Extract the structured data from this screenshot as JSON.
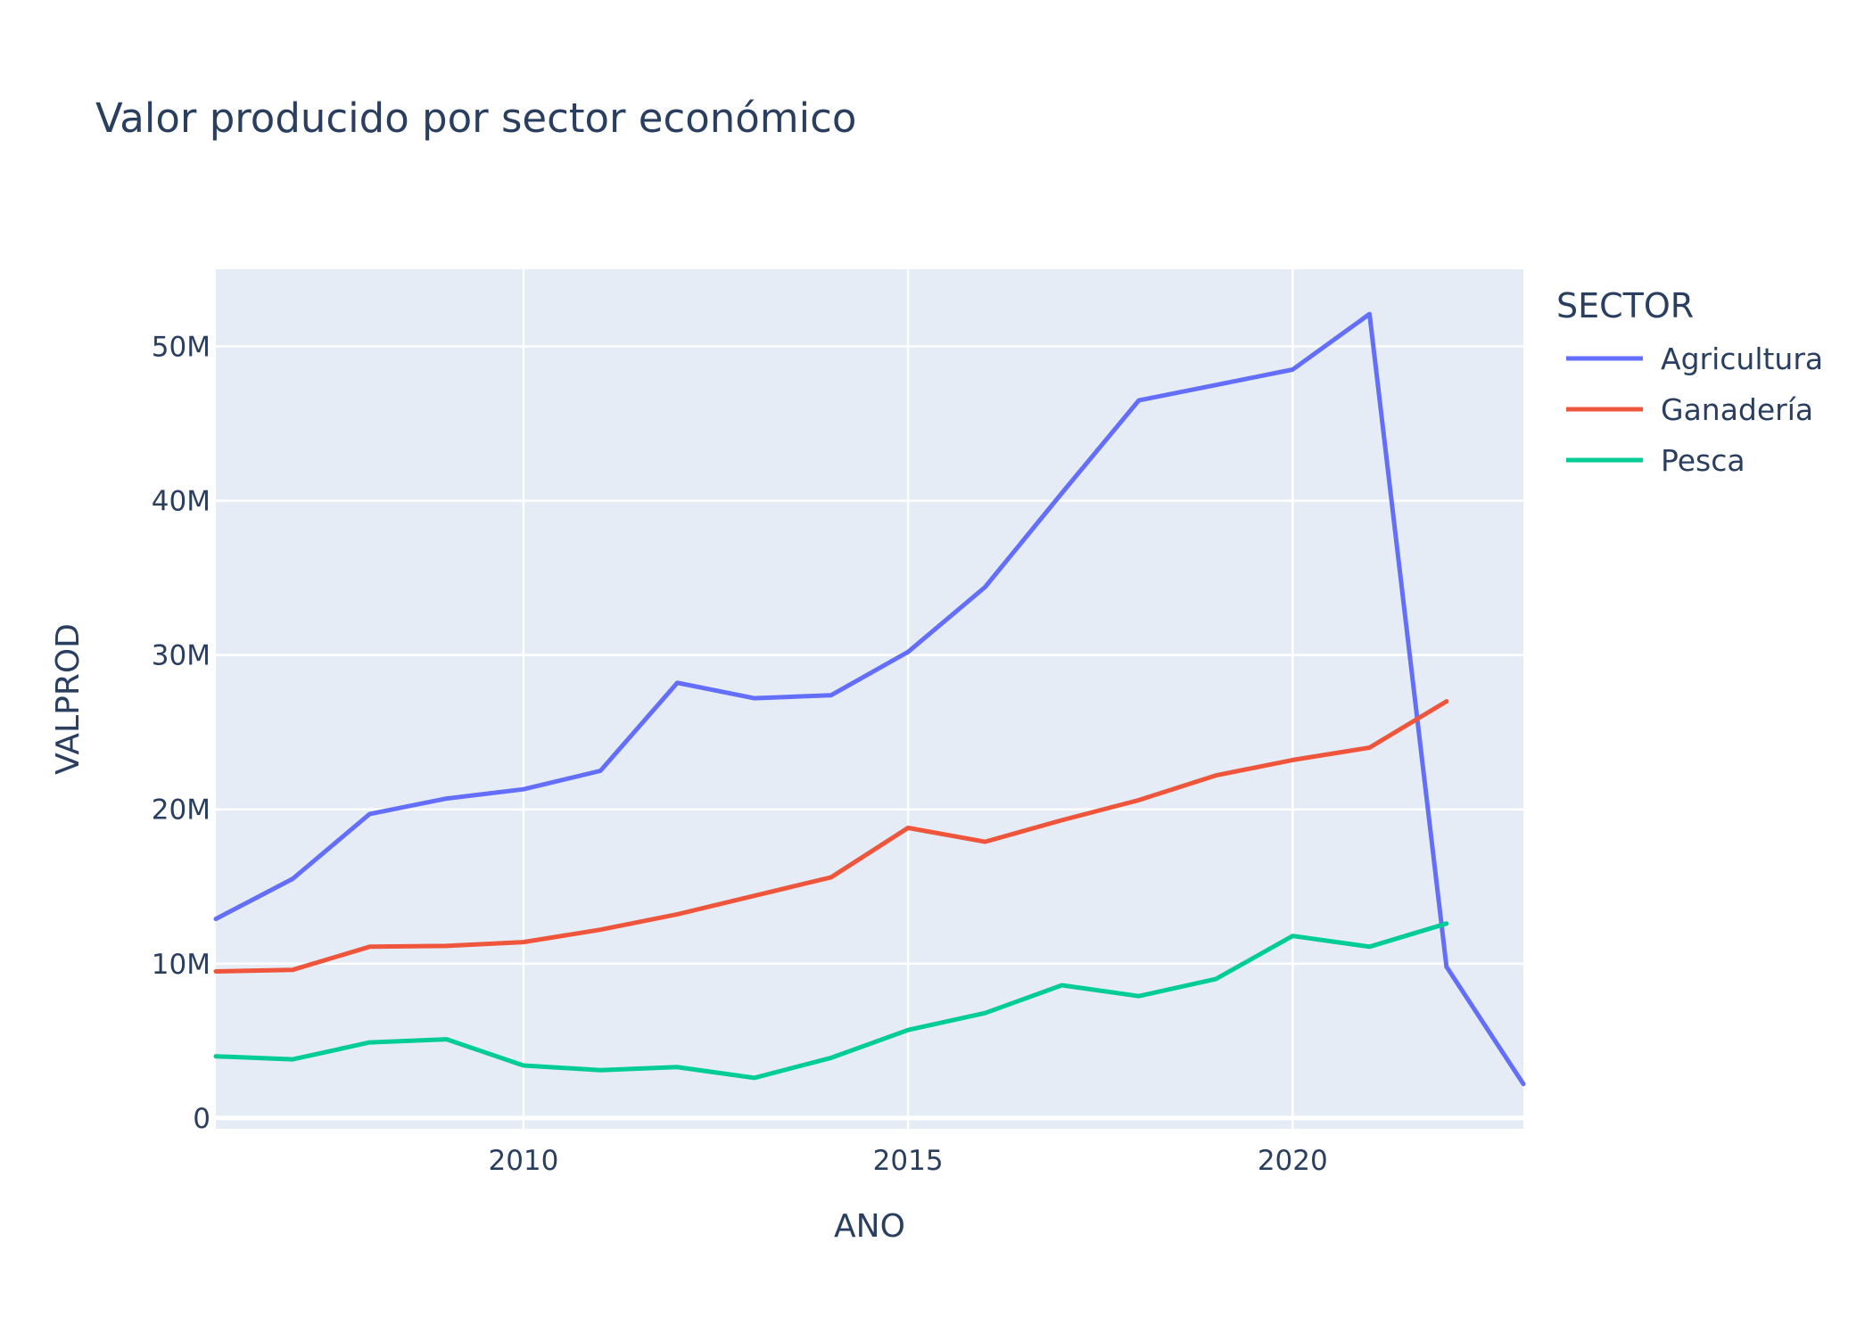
{
  "chart_data": {
    "type": "line",
    "title": "Valor producido por sector económico",
    "xlabel": "ANO",
    "ylabel": "VALPROD",
    "xlim": [
      2006,
      2023
    ],
    "ylim": [
      -700000,
      55000000
    ],
    "x_ticks": [
      {
        "value": 2010,
        "label": "2010"
      },
      {
        "value": 2015,
        "label": "2015"
      },
      {
        "value": 2020,
        "label": "2020"
      }
    ],
    "y_ticks": [
      {
        "value": 0,
        "label": "0"
      },
      {
        "value": 10000000,
        "label": "10M"
      },
      {
        "value": 20000000,
        "label": "20M"
      },
      {
        "value": 30000000,
        "label": "30M"
      },
      {
        "value": 40000000,
        "label": "40M"
      },
      {
        "value": 50000000,
        "label": "50M"
      }
    ],
    "grid": true,
    "legend": {
      "title": "SECTOR",
      "position": "right"
    },
    "plot_background": "#e5ecf6",
    "series": [
      {
        "name": "Agricultura",
        "color": "#636efa",
        "x": [
          2006,
          2007,
          2008,
          2009,
          2010,
          2011,
          2012,
          2013,
          2014,
          2015,
          2016,
          2017,
          2018,
          2019,
          2020,
          2021,
          2022,
          2023
        ],
        "values": [
          12900000,
          15500000,
          19700000,
          20700000,
          21300000,
          22500000,
          28200000,
          27200000,
          27400000,
          30200000,
          34400000,
          40500000,
          46500000,
          47500000,
          48500000,
          52100000,
          9800000,
          2200000
        ]
      },
      {
        "name": "Ganadería",
        "color": "#ef553b",
        "x": [
          2006,
          2007,
          2008,
          2009,
          2010,
          2011,
          2012,
          2013,
          2014,
          2015,
          2016,
          2017,
          2018,
          2019,
          2020,
          2021,
          2022
        ],
        "values": [
          9500000,
          9600000,
          11100000,
          11150000,
          11400000,
          12200000,
          13200000,
          14400000,
          15600000,
          18800000,
          17900000,
          19300000,
          20600000,
          22200000,
          23200000,
          24000000,
          27000000
        ]
      },
      {
        "name": "Pesca",
        "color": "#00cc96",
        "x": [
          2006,
          2007,
          2008,
          2009,
          2010,
          2011,
          2012,
          2013,
          2014,
          2015,
          2016,
          2017,
          2018,
          2019,
          2020,
          2021,
          2022
        ],
        "values": [
          4000000,
          3800000,
          4900000,
          5100000,
          3400000,
          3100000,
          3300000,
          2600000,
          3900000,
          5700000,
          6800000,
          8600000,
          7900000,
          9000000,
          11800000,
          11100000,
          12600000
        ]
      }
    ]
  }
}
